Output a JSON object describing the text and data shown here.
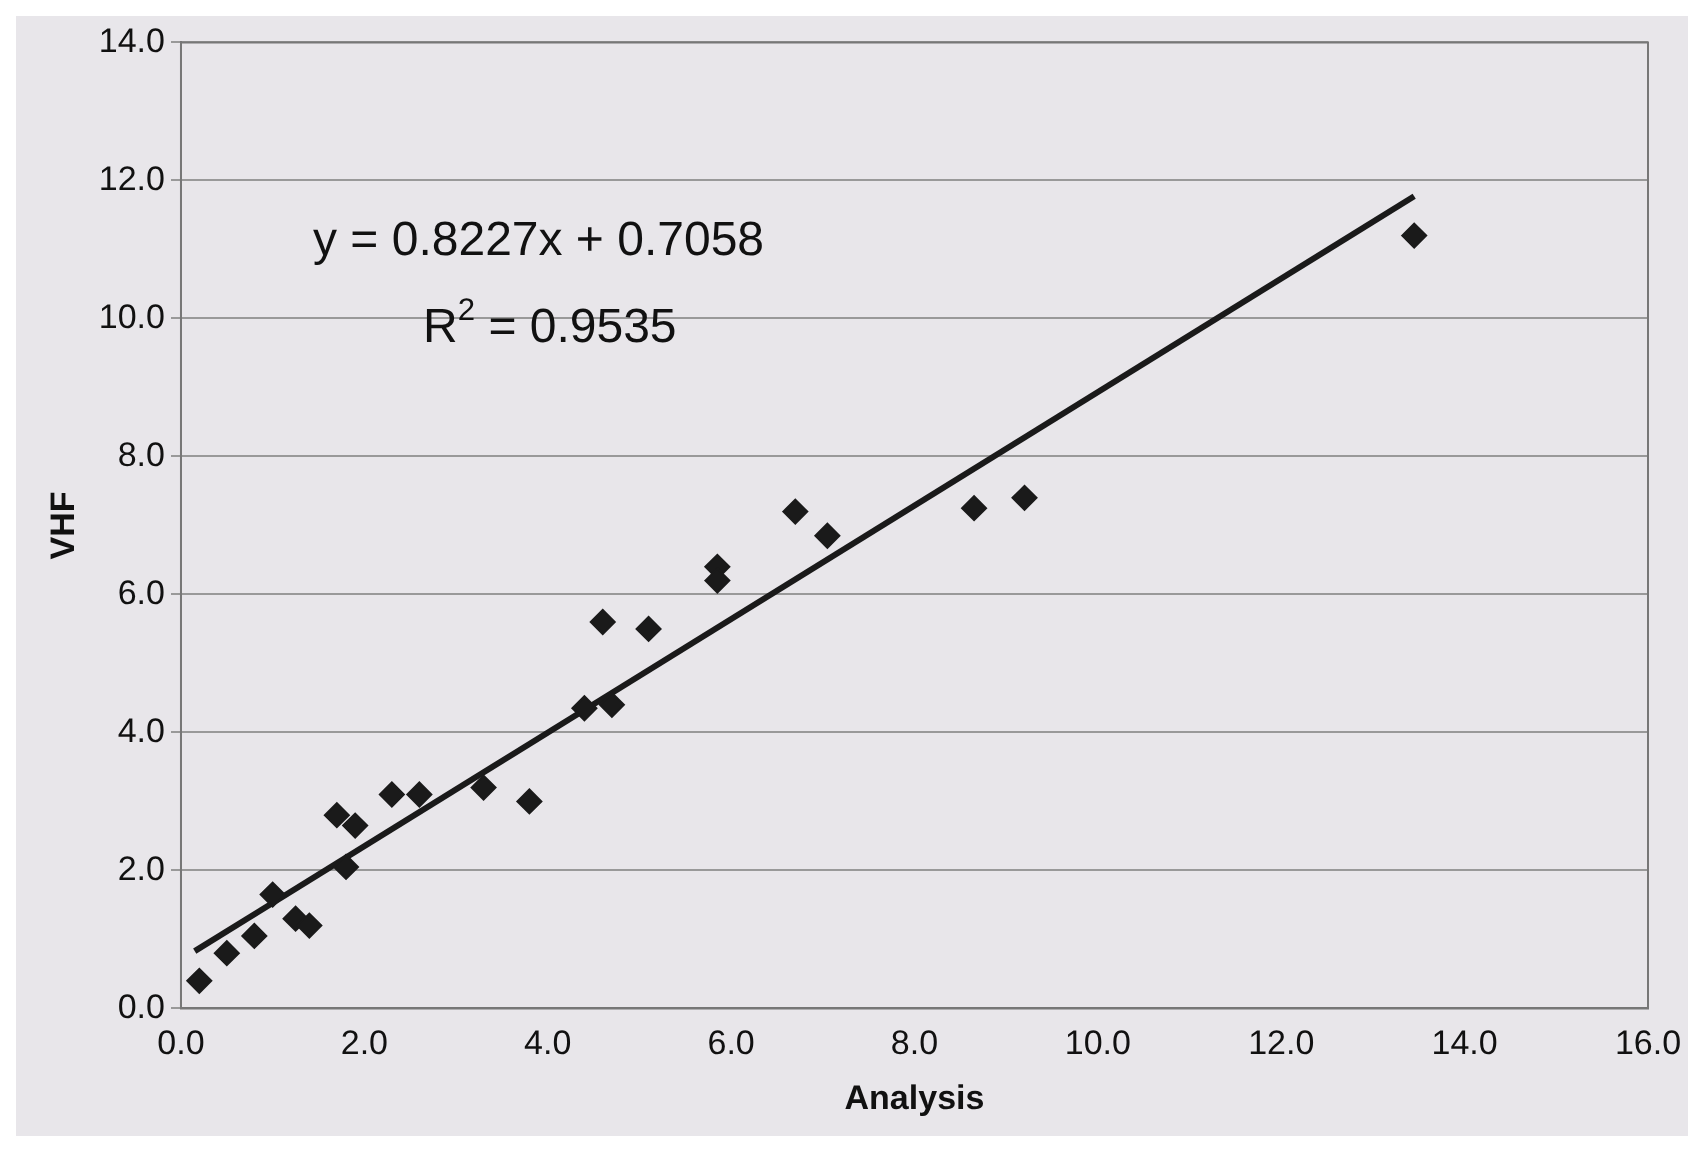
{
  "chart_data": {
    "type": "scatter",
    "xlabel": "Analysis",
    "ylabel": "VHF",
    "xlim": [
      0,
      16
    ],
    "xticks": [
      {
        "value": 0,
        "label": "0.0"
      },
      {
        "value": 2,
        "label": "2.0"
      },
      {
        "value": 4,
        "label": "4.0"
      },
      {
        "value": 6,
        "label": "6.0"
      },
      {
        "value": 8,
        "label": "8.0"
      },
      {
        "value": 10,
        "label": "10.0"
      },
      {
        "value": 12,
        "label": "12.0"
      },
      {
        "value": 14,
        "label": "14.0"
      },
      {
        "value": 16,
        "label": "16.0"
      }
    ],
    "ylim": [
      0,
      14
    ],
    "yticks": [
      {
        "value": 0,
        "label": "0.0"
      },
      {
        "value": 2,
        "label": "2.0"
      },
      {
        "value": 4,
        "label": "4.0"
      },
      {
        "value": 6,
        "label": "6.0"
      },
      {
        "value": 8,
        "label": "8.0"
      },
      {
        "value": 10,
        "label": "10.0"
      },
      {
        "value": 12,
        "label": "12.0"
      },
      {
        "value": 14,
        "label": "14.0"
      }
    ],
    "grid": "y",
    "legend": false,
    "marker": "diamond",
    "annotations": [
      "y = 0.8227x + 0.7058",
      "R$^{2}$ = 0.9535"
    ],
    "series": [
      {
        "color": "#1a1a1a",
        "x": [
          0.2,
          0.5,
          0.8,
          1.0,
          1.25,
          1.4,
          1.7,
          1.9,
          1.8,
          2.3,
          2.6,
          3.3,
          3.8,
          4.4,
          4.6,
          4.7,
          5.1,
          5.85,
          5.85,
          6.7,
          7.05,
          8.65,
          9.2,
          13.45
        ],
        "values": [
          0.4,
          0.8,
          1.05,
          1.65,
          1.3,
          1.2,
          2.8,
          2.65,
          2.05,
          3.1,
          3.1,
          3.2,
          3.0,
          4.35,
          5.6,
          4.4,
          5.5,
          6.4,
          6.2,
          7.2,
          6.85,
          7.25,
          7.4,
          11.2
        ]
      },
      {
        "type": "line",
        "color": "#1a1a1a",
        "marker": "none",
        "line_style": "solid",
        "x": [
          0.15,
          13.45
        ],
        "values": [
          0.83,
          11.77
        ]
      }
    ]
  }
}
